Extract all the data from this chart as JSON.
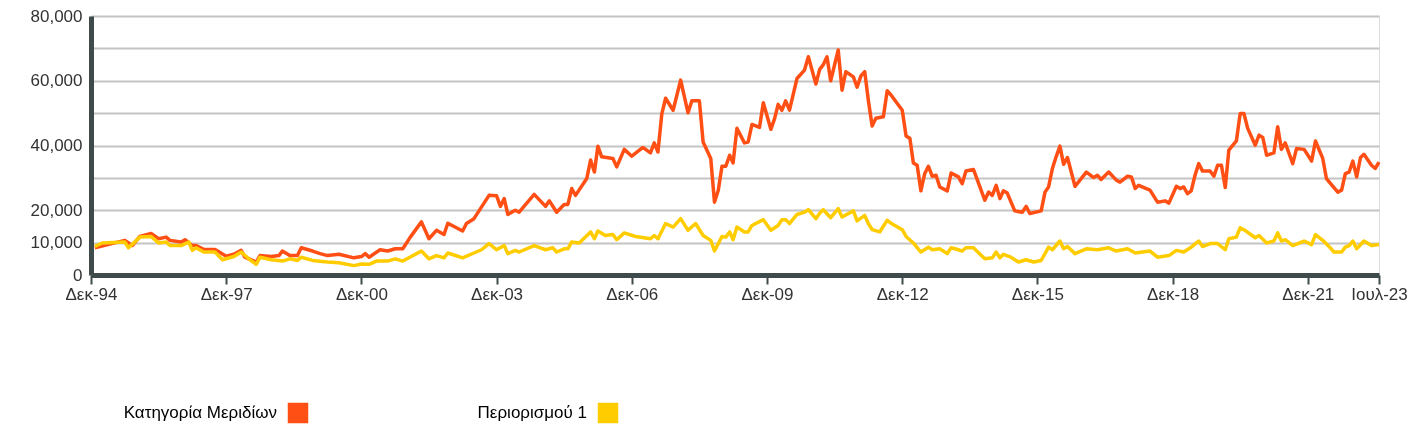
{
  "chart_data": {
    "type": "line",
    "xlim": [
      "1994-12",
      "2023-07"
    ],
    "xticks": [
      {
        "value": "1994-12",
        "label": "Δεκ-94"
      },
      {
        "value": "1997-12",
        "label": "Δεκ-97"
      },
      {
        "value": "2000-12",
        "label": "Δεκ-00"
      },
      {
        "value": "2003-12",
        "label": "Δεκ-03"
      },
      {
        "value": "2006-12",
        "label": "Δεκ-06"
      },
      {
        "value": "2009-12",
        "label": "Δεκ-09"
      },
      {
        "value": "2012-12",
        "label": "Δεκ-12"
      },
      {
        "value": "2015-12",
        "label": "Δεκ-15"
      },
      {
        "value": "2018-12",
        "label": "Δεκ-18"
      },
      {
        "value": "2021-12",
        "label": "Δεκ-21"
      },
      {
        "value": "2023-07",
        "label": "Ιουλ-23"
      }
    ],
    "ylim": [
      0,
      80000
    ],
    "yticks": [
      0,
      {
        "value": 10000,
        "label": "10,000"
      },
      {
        "value": 20000,
        "label": "20,000"
      },
      {
        "value": 30000,
        "label": null
      },
      {
        "value": 40000,
        "label": "40,000"
      },
      {
        "value": 50000,
        "label": null
      },
      {
        "value": 60000,
        "label": "60,000"
      },
      {
        "value": 70000,
        "label": null
      },
      {
        "value": 80000,
        "label": "80,000"
      }
    ],
    "grid": "y",
    "legend": "bottom left",
    "marker": "none",
    "line_style": "solid",
    "series": [
      {
        "name": "Κατηγορία Μεριδίων",
        "color": "#ff4f14",
        "x": [
          "1995-01",
          "1995-09",
          "1995-11",
          "1996-01",
          "1996-04",
          "1996-06",
          "1996-08",
          "1996-09",
          "1996-12",
          "1997-01",
          "1997-03",
          "1997-04",
          "1997-06",
          "1997-09",
          "1997-12",
          "1998-02",
          "1998-04",
          "1998-05",
          "1998-08",
          "1998-09",
          "1998-12",
          "1999-02",
          "1999-03",
          "1999-05",
          "1999-07",
          "1999-08",
          "1999-11",
          "2000-01",
          "2000-03",
          "2000-06",
          "2000-10",
          "2000-12",
          "2001-01",
          "2001-02",
          "2001-05",
          "2001-07",
          "2001-09",
          "2001-11",
          "2002-01",
          "2002-04",
          "2002-06",
          "2002-08",
          "2002-10",
          "2002-11",
          "2003-03",
          "2003-04",
          "2003-06",
          "2003-10",
          "2003-12",
          "2004-01",
          "2004-02",
          "2004-03",
          "2004-05",
          "2004-06",
          "2004-10",
          "2005-01",
          "2005-02",
          "2005-04",
          "2005-06",
          "2005-07",
          "2005-08",
          "2005-09",
          "2005-12",
          "2006-01",
          "2006-02",
          "2006-03",
          "2006-04",
          "2006-07",
          "2006-08",
          "2006-10",
          "2006-12",
          "2007-03",
          "2007-05",
          "2007-06",
          "2007-07",
          "2007-08",
          "2007-09",
          "2007-11",
          "2008-01",
          "2008-03",
          "2008-04",
          "2008-06",
          "2008-07",
          "2008-09",
          "2008-10",
          "2008-11",
          "2008-12",
          "2009-01",
          "2009-02",
          "2009-03",
          "2009-04",
          "2009-06",
          "2009-07",
          "2009-08",
          "2009-10",
          "2009-11",
          "2010-01",
          "2010-02",
          "2010-03",
          "2010-04",
          "2010-05",
          "2010-06",
          "2010-08",
          "2010-10",
          "2010-11",
          "2011-01",
          "2011-02",
          "2011-03",
          "2011-04",
          "2011-05",
          "2011-07",
          "2011-08",
          "2011-09",
          "2011-11",
          "2011-12",
          "2012-01",
          "2012-02",
          "2012-03",
          "2012-04",
          "2012-05",
          "2012-07",
          "2012-08",
          "2012-09",
          "2012-12",
          "2013-01",
          "2013-02",
          "2013-03",
          "2013-04",
          "2013-05",
          "2013-06",
          "2013-07",
          "2013-08",
          "2013-09",
          "2013-10",
          "2013-12",
          "2014-01",
          "2014-03",
          "2014-04",
          "2014-05",
          "2014-07",
          "2014-10",
          "2014-11",
          "2014-12",
          "2015-01",
          "2015-02",
          "2015-03",
          "2015-04",
          "2015-06",
          "2015-08",
          "2015-09",
          "2015-10",
          "2016-01",
          "2016-02",
          "2016-03",
          "2016-04",
          "2016-05",
          "2016-06",
          "2016-07",
          "2016-08",
          "2016-10",
          "2017-01",
          "2017-03",
          "2017-04",
          "2017-05",
          "2017-07",
          "2017-09",
          "2017-10",
          "2017-12",
          "2018-01",
          "2018-02",
          "2018-03",
          "2018-06",
          "2018-08",
          "2018-10",
          "2018-11",
          "2019-01",
          "2019-02",
          "2019-03",
          "2019-04",
          "2019-05",
          "2019-06",
          "2019-07",
          "2019-08",
          "2019-10",
          "2019-11",
          "2019-12",
          "2020-01",
          "2020-02",
          "2020-03",
          "2020-05",
          "2020-06",
          "2020-07",
          "2020-08",
          "2020-10",
          "2020-11",
          "2020-12",
          "2021-01",
          "2021-03",
          "2021-04",
          "2021-05",
          "2021-06",
          "2021-08",
          "2021-09",
          "2021-11",
          "2022-01",
          "2022-02",
          "2022-04",
          "2022-05",
          "2022-07",
          "2022-08",
          "2022-09",
          "2022-10",
          "2022-11",
          "2022-12",
          "2023-01",
          "2023-02",
          "2023-03",
          "2023-05",
          "2023-06",
          "2023-07"
        ],
        "values": [
          8400,
          10700,
          9100,
          11900,
          12800,
          11200,
          11700,
          10700,
          10200,
          10900,
          9100,
          9100,
          7900,
          7900,
          5800,
          6400,
          7600,
          5500,
          4000,
          6000,
          5700,
          6000,
          7400,
          6000,
          6000,
          8400,
          7400,
          6600,
          6000,
          6400,
          5300,
          5700,
          6600,
          5500,
          7800,
          7400,
          8100,
          8100,
          11700,
          16400,
          11200,
          13800,
          12500,
          16000,
          13600,
          15900,
          17400,
          24600,
          24500,
          21200,
          23600,
          18700,
          20000,
          19400,
          24900,
          21200,
          22900,
          19400,
          21800,
          21800,
          26700,
          24600,
          29800,
          35500,
          31800,
          39800,
          36500,
          36000,
          33400,
          38800,
          36700,
          39400,
          37700,
          40800,
          38000,
          49700,
          54600,
          50900,
          60200,
          50100,
          53800,
          53800,
          41100,
          36000,
          22500,
          26200,
          33600,
          33600,
          37000,
          34600,
          45300,
          40800,
          41100,
          46500,
          45600,
          53200,
          45000,
          48400,
          52700,
          50900,
          53800,
          50900,
          60700,
          63300,
          67400,
          59000,
          63500,
          64900,
          67400,
          60000,
          69500,
          57100,
          62800,
          61200,
          58000,
          61500,
          62800,
          54000,
          46000,
          48400,
          48900,
          56900,
          55600,
          50900,
          42900,
          42200,
          34600,
          33900,
          26000,
          31300,
          33600,
          30500,
          30800,
          27200,
          26000,
          31500,
          30300,
          28200,
          32100,
          32600,
          23100,
          25600,
          24600,
          27700,
          23600,
          26000,
          25300,
          19800,
          19400,
          21200,
          19000,
          19800,
          25600,
          27200,
          32900,
          36500,
          39800,
          34200,
          36300,
          27400,
          31800,
          30100,
          30800,
          29500,
          31800,
          29300,
          28700,
          30500,
          30300,
          26700,
          27700,
          26200,
          22500,
          22900,
          22200,
          27400,
          26700,
          27200,
          25100,
          26000,
          30800,
          34400,
          32100,
          32100,
          30500,
          33900,
          33900,
          27000,
          38600,
          41400,
          49900,
          49900,
          45300,
          40100,
          43200,
          42500,
          37000,
          37700,
          45800,
          38800,
          40800,
          34400,
          39100,
          38800,
          35200,
          41400,
          36000,
          29800,
          27000,
          25600,
          26200,
          31300,
          31800,
          35200,
          30300,
          36300,
          37300,
          33900,
          32900,
          34900
        ]
      },
      {
        "name": "Περιορισμού 1",
        "color": "#ffcc00",
        "x": [
          "1995-01",
          "1995-03",
          "1995-09",
          "1995-10",
          "1996-01",
          "1996-04",
          "1996-06",
          "1996-08",
          "1996-09",
          "1996-12",
          "1997-02",
          "1997-03",
          "1997-04",
          "1997-06",
          "1997-09",
          "1997-11",
          "1998-02",
          "1998-04",
          "1998-06",
          "1998-08",
          "1998-09",
          "1998-12",
          "1999-03",
          "1999-05",
          "1999-07",
          "1999-08",
          "1999-11",
          "2000-03",
          "2000-06",
          "2000-10",
          "2000-12",
          "2001-02",
          "2001-04",
          "2001-07",
          "2001-09",
          "2001-11",
          "2002-04",
          "2002-06",
          "2002-08",
          "2002-10",
          "2002-11",
          "2003-03",
          "2003-06",
          "2003-08",
          "2003-10",
          "2003-12",
          "2004-02",
          "2004-03",
          "2004-05",
          "2004-06",
          "2004-10",
          "2005-01",
          "2005-03",
          "2005-04",
          "2005-06",
          "2005-07",
          "2005-08",
          "2005-10",
          "2006-01",
          "2006-02",
          "2006-03",
          "2006-05",
          "2006-07",
          "2006-08",
          "2006-10",
          "2007-01",
          "2007-05",
          "2007-06",
          "2007-07",
          "2007-09",
          "2007-11",
          "2008-01",
          "2008-03",
          "2008-05",
          "2008-07",
          "2008-09",
          "2008-10",
          "2008-12",
          "2009-01",
          "2009-02",
          "2009-03",
          "2009-04",
          "2009-06",
          "2009-07",
          "2009-08",
          "2009-11",
          "2010-01",
          "2010-03",
          "2010-04",
          "2010-05",
          "2010-06",
          "2010-08",
          "2010-10",
          "2010-11",
          "2011-01",
          "2011-02",
          "2011-03",
          "2011-05",
          "2011-07",
          "2011-08",
          "2011-11",
          "2011-12",
          "2012-02",
          "2012-03",
          "2012-04",
          "2012-06",
          "2012-08",
          "2012-09",
          "2012-12",
          "2013-01",
          "2013-03",
          "2013-05",
          "2013-07",
          "2013-08",
          "2013-10",
          "2013-12",
          "2014-01",
          "2014-03",
          "2014-04",
          "2014-05",
          "2014-07",
          "2014-10",
          "2014-12",
          "2015-01",
          "2015-02",
          "2015-03",
          "2015-05",
          "2015-07",
          "2015-09",
          "2015-11",
          "2016-01",
          "2016-02",
          "2016-03",
          "2016-04",
          "2016-06",
          "2016-07",
          "2016-08",
          "2016-10",
          "2017-01",
          "2017-04",
          "2017-07",
          "2017-09",
          "2017-12",
          "2018-02",
          "2018-06",
          "2018-08",
          "2018-11",
          "2019-01",
          "2019-03",
          "2019-05",
          "2019-07",
          "2019-08",
          "2019-10",
          "2019-12",
          "2020-02",
          "2020-03",
          "2020-05",
          "2020-06",
          "2020-07",
          "2020-10",
          "2020-11",
          "2021-01",
          "2021-03",
          "2021-04",
          "2021-05",
          "2021-06",
          "2021-08",
          "2021-11",
          "2022-01",
          "2022-02",
          "2022-04",
          "2022-06",
          "2022-07",
          "2022-09",
          "2022-10",
          "2022-11",
          "2022-12",
          "2023-01",
          "2023-03",
          "2023-05",
          "2023-07"
        ],
        "values": [
          8800,
          9900,
          10200,
          8400,
          11700,
          11900,
          9900,
          10200,
          9100,
          9100,
          10200,
          7600,
          8400,
          7100,
          7100,
          4700,
          5700,
          7100,
          5000,
          3300,
          5500,
          4700,
          4300,
          5000,
          4500,
          5500,
          4500,
          4000,
          3800,
          2900,
          3400,
          3300,
          4300,
          4300,
          5000,
          4300,
          7400,
          5000,
          6000,
          5300,
          6800,
          5300,
          6800,
          7800,
          9700,
          7800,
          9100,
          6600,
          7600,
          7100,
          9100,
          7800,
          8400,
          7100,
          8100,
          8100,
          10200,
          9900,
          13300,
          11200,
          13600,
          12200,
          12500,
          10900,
          13000,
          11900,
          11200,
          12200,
          11200,
          15900,
          14800,
          17400,
          13800,
          15900,
          12200,
          10700,
          7400,
          11900,
          11700,
          13300,
          10900,
          14800,
          13300,
          13300,
          15300,
          17100,
          13800,
          15300,
          17100,
          17100,
          15900,
          18700,
          19400,
          20200,
          17400,
          19100,
          20200,
          17700,
          20500,
          17900,
          19800,
          16700,
          18400,
          15900,
          14000,
          13300,
          16900,
          16000,
          14000,
          11900,
          9900,
          7100,
          8600,
          7800,
          8100,
          6600,
          8400,
          7800,
          7400,
          8400,
          8400,
          5000,
          5300,
          7100,
          5300,
          6400,
          5500,
          4000,
          4700,
          4000,
          4500,
          6600,
          8600,
          7800,
          10500,
          8100,
          8800,
          6600,
          8100,
          7800,
          8400,
          7400,
          8100,
          6800,
          7400,
          5500,
          6000,
          7600,
          7100,
          8600,
          10500,
          8800,
          9700,
          9700,
          7800,
          11200,
          11700,
          14600,
          14000,
          11500,
          12200,
          9900,
          10500,
          13000,
          10500,
          10900,
          9100,
          10500,
          9400,
          12500,
          10700,
          8400,
          7100,
          7100,
          8600,
          9100,
          10500,
          8100,
          10500,
          9100,
          9400
        ]
      }
    ]
  }
}
